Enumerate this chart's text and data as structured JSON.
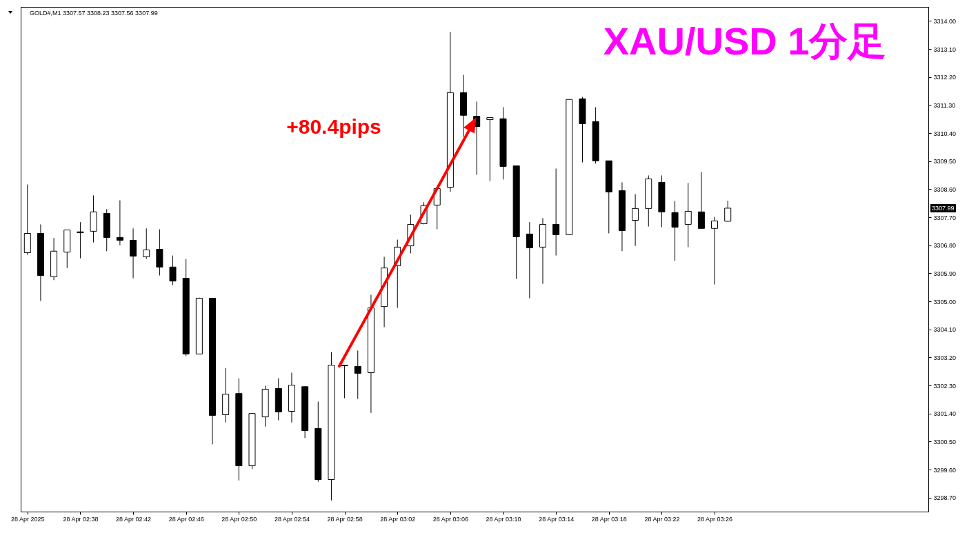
{
  "chart_data": {
    "type": "candlestick",
    "title": "XAU/USD 1分足",
    "subtitle": "GOLD#,M1 3307.57 3308.23 3307.56 3307.99",
    "x": [
      "2025-04-28T02:34",
      "2025-04-28T02:35",
      "2025-04-28T02:36",
      "2025-04-28T02:37",
      "2025-04-28T02:38",
      "2025-04-28T02:39",
      "2025-04-28T02:40",
      "2025-04-28T02:41",
      "2025-04-28T02:42",
      "2025-04-28T02:43",
      "2025-04-28T02:44",
      "2025-04-28T02:45",
      "2025-04-28T02:46",
      "2025-04-28T02:47",
      "2025-04-28T02:48",
      "2025-04-28T02:49",
      "2025-04-28T02:50",
      "2025-04-28T02:51",
      "2025-04-28T02:52",
      "2025-04-28T02:53",
      "2025-04-28T02:54",
      "2025-04-28T02:55",
      "2025-04-28T02:56",
      "2025-04-28T02:57",
      "2025-04-28T02:58",
      "2025-04-28T02:59",
      "2025-04-28T03:00",
      "2025-04-28T03:01",
      "2025-04-28T03:02",
      "2025-04-28T03:03",
      "2025-04-28T03:04",
      "2025-04-28T03:05",
      "2025-04-28T03:06",
      "2025-04-28T03:07",
      "2025-04-28T03:08",
      "2025-04-28T03:09",
      "2025-04-28T03:10",
      "2025-04-28T03:11",
      "2025-04-28T03:12",
      "2025-04-28T03:13",
      "2025-04-28T03:14",
      "2025-04-28T03:15",
      "2025-04-28T03:16",
      "2025-04-28T03:17",
      "2025-04-28T03:18",
      "2025-04-28T03:19",
      "2025-04-28T03:20",
      "2025-04-28T03:21",
      "2025-04-28T03:22",
      "2025-04-28T03:23",
      "2025-04-28T03:24",
      "2025-04-28T03:25",
      "2025-04-28T03:26",
      "2025-04-28T03:27"
    ],
    "ohlc": [
      [
        3306.56,
        3308.75,
        3306.49,
        3307.18
      ],
      [
        3307.18,
        3307.47,
        3305.01,
        3305.83
      ],
      [
        3305.79,
        3307.03,
        3305.68,
        3306.61
      ],
      [
        3306.58,
        3307.29,
        3306.07,
        3307.29
      ],
      [
        3307.23,
        3307.54,
        3306.38,
        3307.2
      ],
      [
        3307.25,
        3308.4,
        3306.89,
        3307.87
      ],
      [
        3307.82,
        3307.96,
        3306.61,
        3307.05
      ],
      [
        3307.05,
        3308.24,
        3306.8,
        3306.96
      ],
      [
        3306.96,
        3307.34,
        3305.74,
        3306.45
      ],
      [
        3306.43,
        3307.34,
        3306.36,
        3306.65
      ],
      [
        3306.67,
        3307.31,
        3305.83,
        3306.1
      ],
      [
        3306.1,
        3306.47,
        3305.52,
        3305.65
      ],
      [
        3305.74,
        3306.36,
        3303.24,
        3303.31
      ],
      [
        3303.31,
        3305.12,
        3303.31,
        3305.1
      ],
      [
        3305.1,
        3305.1,
        3300.41,
        3301.34
      ],
      [
        3301.36,
        3302.86,
        3301.11,
        3302.02
      ],
      [
        3302.04,
        3302.53,
        3299.25,
        3299.72
      ],
      [
        3299.72,
        3301.42,
        3299.61,
        3301.4
      ],
      [
        3301.29,
        3302.29,
        3300.98,
        3302.18
      ],
      [
        3302.2,
        3302.53,
        3301.18,
        3301.45
      ],
      [
        3301.47,
        3302.71,
        3301.11,
        3302.31
      ],
      [
        3302.26,
        3302.26,
        3300.61,
        3300.85
      ],
      [
        3300.92,
        3301.78,
        3299.21,
        3299.28
      ],
      [
        3299.28,
        3303.37,
        3298.61,
        3302.95
      ],
      [
        3302.95,
        3302.95,
        3301.89,
        3302.93
      ],
      [
        3302.91,
        3303.42,
        3301.87,
        3302.69
      ],
      [
        3302.71,
        3305.21,
        3301.42,
        3304.79
      ],
      [
        3304.83,
        3306.43,
        3304.17,
        3306.07
      ],
      [
        3306.14,
        3306.98,
        3304.79,
        3306.74
      ],
      [
        3306.78,
        3307.78,
        3306.54,
        3307.47
      ],
      [
        3307.49,
        3308.18,
        3307.47,
        3308.07
      ],
      [
        3308.09,
        3308.66,
        3307.31,
        3308.62
      ],
      [
        3308.66,
        3313.65,
        3308.51,
        3311.7
      ],
      [
        3311.7,
        3312.27,
        3310.28,
        3310.97
      ],
      [
        3310.94,
        3311.41,
        3309.06,
        3310.61
      ],
      [
        3310.83,
        3310.9,
        3308.86,
        3310.9
      ],
      [
        3310.86,
        3311.23,
        3308.91,
        3309.33
      ],
      [
        3309.35,
        3309.35,
        3305.72,
        3307.07
      ],
      [
        3307.16,
        3307.54,
        3305.1,
        3306.72
      ],
      [
        3306.74,
        3307.67,
        3305.56,
        3307.47
      ],
      [
        3307.47,
        3309.26,
        3306.47,
        3307.14
      ],
      [
        3307.14,
        3311.48,
        3307.14,
        3311.48
      ],
      [
        3311.5,
        3311.56,
        3309.46,
        3310.7
      ],
      [
        3310.77,
        3311.23,
        3309.42,
        3309.51
      ],
      [
        3309.51,
        3309.51,
        3307.18,
        3308.51
      ],
      [
        3308.55,
        3308.82,
        3306.61,
        3307.27
      ],
      [
        3307.6,
        3308.44,
        3306.78,
        3307.98
      ],
      [
        3307.98,
        3309.04,
        3307.4,
        3308.93
      ],
      [
        3308.82,
        3309.04,
        3307.38,
        3307.87
      ],
      [
        3307.85,
        3308.22,
        3306.3,
        3307.38
      ],
      [
        3307.47,
        3308.8,
        3306.74,
        3307.89
      ],
      [
        3307.87,
        3309.15,
        3307.34,
        3307.34
      ],
      [
        3307.34,
        3307.71,
        3305.54,
        3307.58
      ],
      [
        3307.57,
        3308.23,
        3307.56,
        3307.99
      ]
    ],
    "xlim": [
      "2025-04-28T02:33:45",
      "2025-04-28T03:41:55"
    ],
    "xticks": [
      {
        "value": "2025-04-28T02:34",
        "label": "28 Apr 2025"
      },
      {
        "value": "2025-04-28T02:38",
        "label": "28 Apr 02:38"
      },
      {
        "value": "2025-04-28T02:42",
        "label": "28 Apr 02:42"
      },
      {
        "value": "2025-04-28T02:46",
        "label": "28 Apr 02:46"
      },
      {
        "value": "2025-04-28T02:50",
        "label": "28 Apr 02:50"
      },
      {
        "value": "2025-04-28T02:54",
        "label": "28 Apr 02:54"
      },
      {
        "value": "2025-04-28T02:58",
        "label": "28 Apr 02:58"
      },
      {
        "value": "2025-04-28T03:02",
        "label": "28 Apr 03:02"
      },
      {
        "value": "2025-04-28T03:06",
        "label": "28 Apr 03:06"
      },
      {
        "value": "2025-04-28T03:10",
        "label": "28 Apr 03:10"
      },
      {
        "value": "2025-04-28T03:14",
        "label": "28 Apr 03:14"
      },
      {
        "value": "2025-04-28T03:18",
        "label": "28 Apr 03:18"
      },
      {
        "value": "2025-04-28T03:22",
        "label": "28 Apr 03:22"
      },
      {
        "value": "2025-04-28T03:26",
        "label": "28 Apr 03:26"
      }
    ],
    "ylim": [
      3298.25,
      3314.45
    ],
    "yticks": [
      {
        "value": 3298.7,
        "label": "3298.70"
      },
      {
        "value": 3299.6,
        "label": "3299.60"
      },
      {
        "value": 3300.5,
        "label": "3300.50"
      },
      {
        "value": 3301.4,
        "label": "3301.40"
      },
      {
        "value": 3302.3,
        "label": "3302.30"
      },
      {
        "value": 3303.2,
        "label": "3303.20"
      },
      {
        "value": 3304.1,
        "label": "3304.10"
      },
      {
        "value": 3305.0,
        "label": "3305.00"
      },
      {
        "value": 3305.9,
        "label": "3305.90"
      },
      {
        "value": 3306.8,
        "label": "3306.80"
      },
      {
        "value": 3307.7,
        "label": "3307.70"
      },
      {
        "value": 3308.6,
        "label": "3308.60"
      },
      {
        "value": 3309.5,
        "label": "3309.50"
      },
      {
        "value": 3310.4,
        "label": "3310.40"
      },
      {
        "value": 3311.3,
        "label": "3311.30"
      },
      {
        "value": 3312.2,
        "label": "3312.20"
      },
      {
        "value": 3313.1,
        "label": "3313.10"
      },
      {
        "value": 3314.0,
        "label": "3314.00"
      }
    ],
    "annotations": [
      "+80.4pips",
      "3307.99"
    ]
  }
}
